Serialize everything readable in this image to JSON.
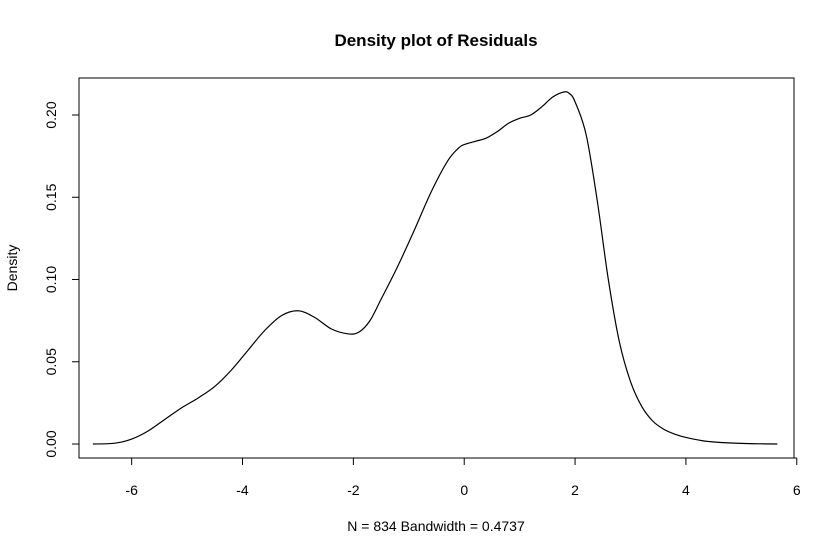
{
  "chart_data": {
    "type": "line",
    "title": "Density plot of Residuals",
    "xlabel": "N = 834   Bandwidth = 0.4737",
    "ylabel": "Density",
    "xlim": [
      -6.95,
      5.95
    ],
    "ylim": [
      -0.0085,
      0.2225
    ],
    "xticks": [
      -6,
      -4,
      -2,
      0,
      2,
      4,
      6
    ],
    "xtick_labels": [
      "-6",
      "-4",
      "-2",
      "0",
      "2",
      "4",
      "6"
    ],
    "yticks": [
      0.0,
      0.05,
      0.1,
      0.15,
      0.2
    ],
    "ytick_labels": [
      "0.00",
      "0.05",
      "0.10",
      "0.15",
      "0.20"
    ],
    "grid": false,
    "series": [
      {
        "color": "#000000",
        "x": [
          -6.7,
          -6.3,
          -6.0,
          -5.7,
          -5.4,
          -5.1,
          -4.8,
          -4.5,
          -4.2,
          -3.9,
          -3.6,
          -3.3,
          -3.0,
          -2.7,
          -2.4,
          -2.1,
          -1.9,
          -1.7,
          -1.5,
          -1.2,
          -0.9,
          -0.6,
          -0.3,
          -0.1,
          0.0,
          0.2,
          0.4,
          0.6,
          0.8,
          1.0,
          1.2,
          1.4,
          1.6,
          1.8,
          1.9,
          2.0,
          2.2,
          2.4,
          2.6,
          2.8,
          3.0,
          3.2,
          3.4,
          3.6,
          3.8,
          4.0,
          4.3,
          4.6,
          5.0,
          5.4,
          5.65
        ],
        "y": [
          0.0,
          0.0005,
          0.003,
          0.008,
          0.015,
          0.022,
          0.028,
          0.035,
          0.045,
          0.057,
          0.069,
          0.078,
          0.081,
          0.077,
          0.07,
          0.067,
          0.068,
          0.075,
          0.088,
          0.108,
          0.13,
          0.153,
          0.172,
          0.18,
          0.182,
          0.184,
          0.186,
          0.19,
          0.195,
          0.198,
          0.2,
          0.205,
          0.211,
          0.214,
          0.213,
          0.208,
          0.188,
          0.148,
          0.1,
          0.062,
          0.038,
          0.023,
          0.014,
          0.009,
          0.006,
          0.004,
          0.002,
          0.001,
          0.0004,
          0.0001,
          0.0
        ]
      }
    ]
  }
}
